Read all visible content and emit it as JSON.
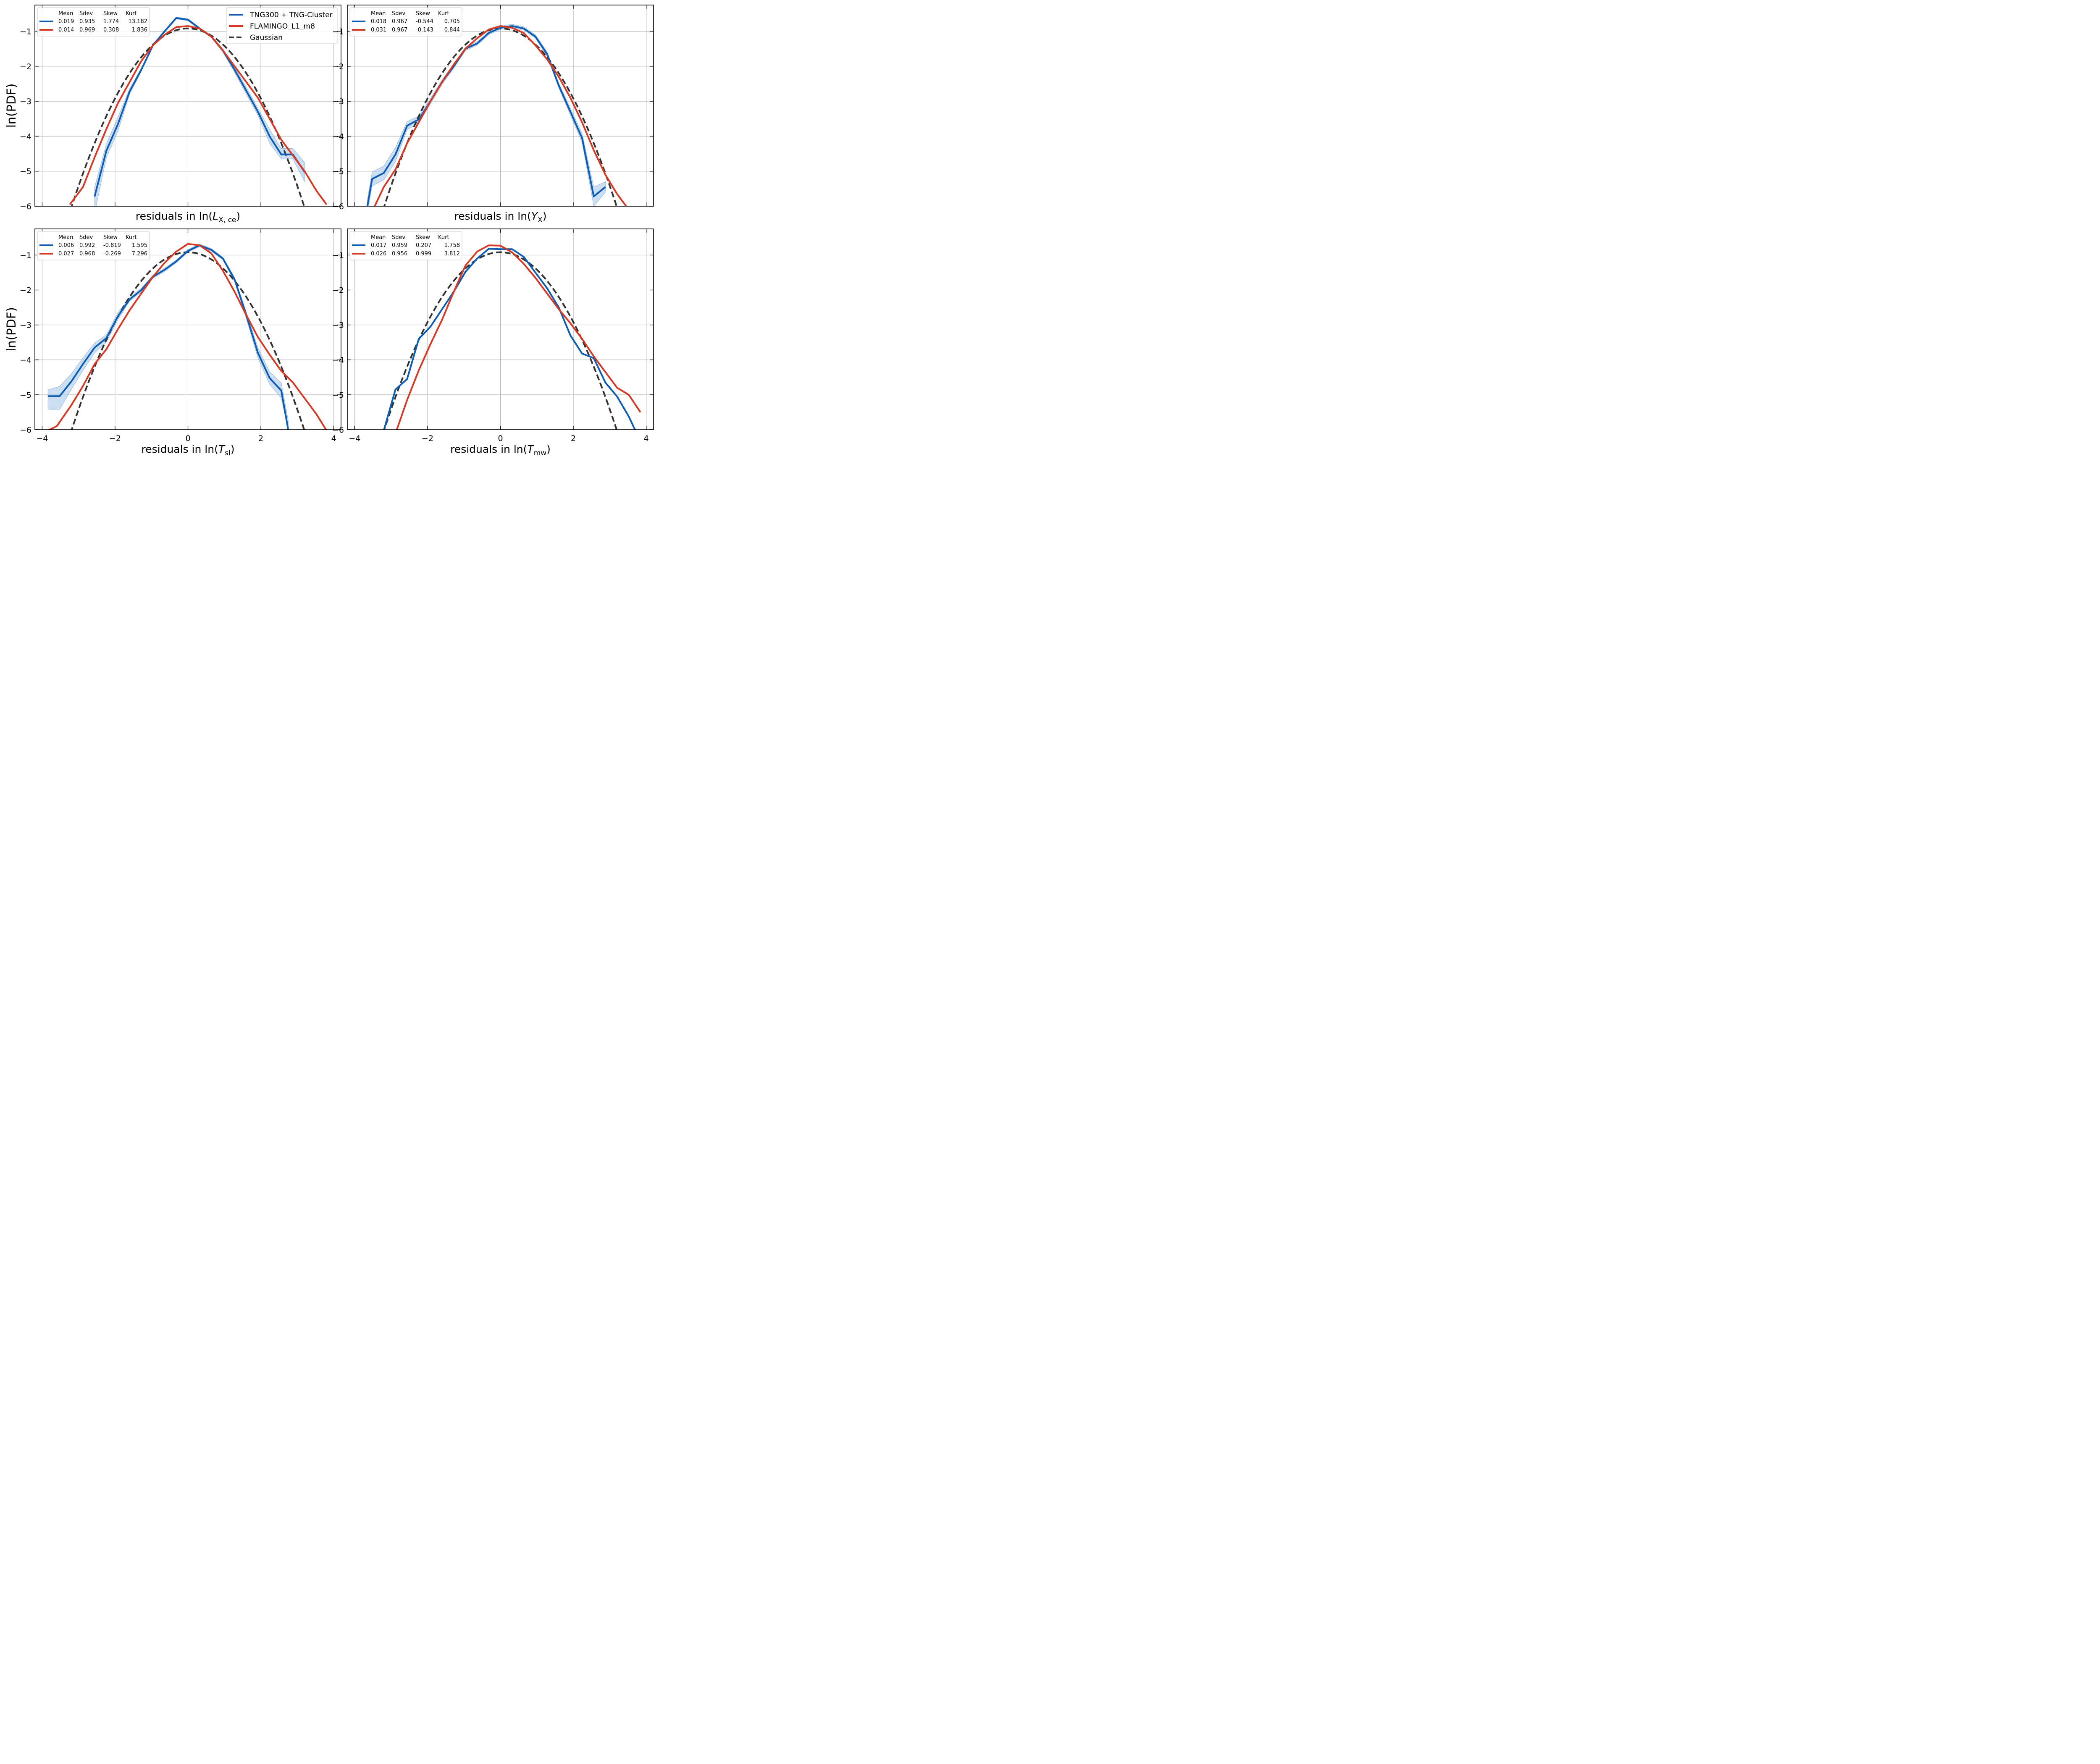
{
  "figure": {
    "ylabel": "ln(PDF)",
    "legend": {
      "placement": "top-right of first panel",
      "entries": [
        {
          "label": "TNG300 + TNG-Cluster",
          "color": "#0c5db3",
          "dash": "solid"
        },
        {
          "label": "FLAMINGO_L1_m8",
          "color": "#d63a24",
          "dash": "solid"
        },
        {
          "label": "Gaussian",
          "color": "#333333",
          "dash": "dashed"
        }
      ]
    },
    "colors": {
      "tng": "#0c5db3",
      "band": "#a9c8ea",
      "flamingo": "#d63a24",
      "gauss": "#333333"
    }
  },
  "chart_data": [
    {
      "type": "line",
      "panel": "top-left",
      "xlabel": {
        "pre": "residuals in ln(",
        "var": "L",
        "sub": "X, ce",
        "post": ")"
      },
      "ylabel": "ln(PDF)",
      "xlim": [
        -4.2,
        4.2
      ],
      "ylim": [
        -6.0,
        -0.25
      ],
      "xticks": [
        -4,
        -2,
        0,
        2,
        4
      ],
      "yticks": [
        -6,
        -5,
        -4,
        -3,
        -2,
        -1
      ],
      "show_xtick_labels": false,
      "grid": true,
      "stats": {
        "headers": [
          "Mean",
          "Sdev",
          "Skew",
          "Kurt"
        ],
        "rows": [
          {
            "series": "TNG300 + TNG-Cluster",
            "values": [
              "0.019",
              "0.935",
              "1.774",
              "13.182"
            ]
          },
          {
            "series": "FLAMINGO_L1_m8",
            "values": [
              "0.014",
              "0.969",
              "0.308",
              "1.836"
            ]
          }
        ]
      },
      "series": [
        {
          "name": "TNG300 + TNG-Cluster",
          "x": [
            -2.56,
            -2.24,
            -1.92,
            -1.6,
            -1.28,
            -0.96,
            -0.64,
            -0.32,
            0.0,
            0.32,
            0.64,
            0.96,
            1.28,
            1.6,
            1.92,
            2.24,
            2.56,
            2.88,
            3.2
          ],
          "y": [
            -5.72,
            -4.42,
            -3.65,
            -2.72,
            -2.1,
            -1.4,
            -1.0,
            -0.62,
            -0.67,
            -0.92,
            -1.15,
            -1.55,
            -2.1,
            -2.7,
            -3.3,
            -4.0,
            -4.52,
            -4.52,
            -5.02
          ],
          "band_lower": [
            -6.2,
            -4.62,
            -3.85,
            -2.8,
            -2.15,
            -1.43,
            -1.03,
            -0.65,
            -0.7,
            -0.95,
            -1.18,
            -1.6,
            -2.18,
            -2.8,
            -3.4,
            -4.2,
            -4.65,
            -4.65,
            -5.3
          ],
          "band_upper": [
            -5.45,
            -4.22,
            -3.45,
            -2.64,
            -2.05,
            -1.37,
            -0.97,
            -0.59,
            -0.64,
            -0.89,
            -1.12,
            -1.5,
            -2.02,
            -2.6,
            -3.2,
            -3.8,
            -4.35,
            -4.35,
            -4.75
          ]
        },
        {
          "name": "FLAMINGO_L1_m8",
          "x": [
            -3.24,
            -2.88,
            -2.56,
            -2.24,
            -1.92,
            -1.6,
            -1.28,
            -0.96,
            -0.64,
            -0.32,
            0.0,
            0.32,
            0.64,
            0.96,
            1.28,
            1.6,
            1.92,
            2.24,
            2.56,
            2.88,
            3.2,
            3.52,
            3.8
          ],
          "y": [
            -5.95,
            -5.45,
            -4.6,
            -3.8,
            -3.05,
            -2.45,
            -1.85,
            -1.4,
            -1.1,
            -0.88,
            -0.85,
            -0.92,
            -1.15,
            -1.55,
            -2.0,
            -2.45,
            -2.9,
            -3.5,
            -4.1,
            -4.55,
            -5.0,
            -5.55,
            -5.95
          ]
        }
      ]
    },
    {
      "type": "line",
      "panel": "top-right",
      "xlabel": {
        "pre": "residuals in ln(",
        "var": "Y",
        "sub": "X",
        "post": ")"
      },
      "ylabel": "",
      "xlim": [
        -4.2,
        4.2
      ],
      "ylim": [
        -6.0,
        -0.25
      ],
      "xticks": [
        -4,
        -2,
        0,
        2,
        4
      ],
      "yticks": [
        -6,
        -5,
        -4,
        -3,
        -2,
        -1
      ],
      "show_xtick_labels": false,
      "grid": true,
      "stats": {
        "headers": [
          "Mean",
          "Sdev",
          "Skew",
          "Kurt"
        ],
        "rows": [
          {
            "series": "TNG300 + TNG-Cluster",
            "values": [
              "0.018",
              "0.967",
              "-0.544",
              "0.705"
            ]
          },
          {
            "series": "FLAMINGO_L1_m8",
            "values": [
              "0.031",
              "0.967",
              "-0.143",
              "0.844"
            ]
          }
        ]
      },
      "series": [
        {
          "name": "TNG300 + TNG-Cluster",
          "x": [
            -3.65,
            -3.52,
            -3.2,
            -2.88,
            -2.56,
            -2.24,
            -1.92,
            -1.6,
            -1.28,
            -0.96,
            -0.64,
            -0.32,
            0.0,
            0.32,
            0.64,
            0.96,
            1.28,
            1.6,
            1.92,
            2.24,
            2.56,
            2.88
          ],
          "y": [
            -6.0,
            -5.22,
            -5.05,
            -4.52,
            -3.7,
            -3.52,
            -3.0,
            -2.45,
            -2.0,
            -1.5,
            -1.35,
            -1.05,
            -0.9,
            -0.85,
            -0.92,
            -1.15,
            -1.65,
            -2.55,
            -3.3,
            -4.05,
            -5.72,
            -5.45
          ],
          "band_lower": [
            -6.2,
            -5.42,
            -5.25,
            -4.72,
            -3.82,
            -3.62,
            -3.08,
            -2.52,
            -2.06,
            -1.55,
            -1.4,
            -1.1,
            -0.95,
            -0.9,
            -0.97,
            -1.2,
            -1.72,
            -2.62,
            -3.4,
            -4.18,
            -6.0,
            -5.6
          ],
          "band_upper": [
            -5.8,
            -5.02,
            -4.85,
            -4.32,
            -3.58,
            -3.42,
            -2.92,
            -2.38,
            -1.94,
            -1.45,
            -1.3,
            -1.0,
            -0.85,
            -0.8,
            -0.87,
            -1.1,
            -1.58,
            -2.48,
            -3.2,
            -3.92,
            -5.45,
            -5.3
          ]
        },
        {
          "name": "FLAMINGO_L1_m8",
          "x": [
            -3.45,
            -3.2,
            -2.88,
            -2.56,
            -2.24,
            -1.92,
            -1.6,
            -1.28,
            -0.96,
            -0.64,
            -0.32,
            0.0,
            0.32,
            0.64,
            0.96,
            1.28,
            1.6,
            1.92,
            2.24,
            2.56,
            2.88,
            3.2,
            3.45
          ],
          "y": [
            -6.0,
            -5.45,
            -4.95,
            -4.2,
            -3.6,
            -3.0,
            -2.45,
            -1.95,
            -1.5,
            -1.2,
            -0.95,
            -0.85,
            -0.9,
            -1.05,
            -1.4,
            -1.8,
            -2.3,
            -2.9,
            -3.6,
            -4.4,
            -5.1,
            -5.65,
            -6.0
          ]
        }
      ]
    },
    {
      "type": "line",
      "panel": "bottom-left",
      "xlabel": {
        "pre": "residuals in ln(",
        "var": "T",
        "sub": "sl",
        "post": ")"
      },
      "ylabel": "ln(PDF)",
      "xlim": [
        -4.2,
        4.2
      ],
      "ylim": [
        -6.0,
        -0.25
      ],
      "xticks": [
        -4,
        -2,
        0,
        2,
        4
      ],
      "yticks": [
        -6,
        -5,
        -4,
        -3,
        -2,
        -1
      ],
      "show_xtick_labels": true,
      "grid": true,
      "stats": {
        "headers": [
          "Mean",
          "Sdev",
          "Skew",
          "Kurt"
        ],
        "rows": [
          {
            "series": "TNG300 + TNG-Cluster",
            "values": [
              "0.006",
              "0.992",
              "-0.819",
              "1.595"
            ]
          },
          {
            "series": "FLAMINGO_L1_m8",
            "values": [
              "0.027",
              "0.968",
              "-0.269",
              "7.296"
            ]
          }
        ]
      },
      "series": [
        {
          "name": "TNG300 + TNG-Cluster",
          "x": [
            -3.84,
            -3.52,
            -3.2,
            -2.88,
            -2.56,
            -2.24,
            -1.92,
            -1.6,
            -1.28,
            -0.96,
            -0.64,
            -0.32,
            0.0,
            0.32,
            0.64,
            0.96,
            1.28,
            1.6,
            1.92,
            2.24,
            2.56,
            2.75
          ],
          "y": [
            -5.04,
            -5.04,
            -4.62,
            -4.12,
            -3.65,
            -3.38,
            -2.75,
            -2.27,
            -2.0,
            -1.62,
            -1.42,
            -1.18,
            -0.88,
            -0.72,
            -0.85,
            -1.1,
            -1.7,
            -2.72,
            -3.8,
            -4.52,
            -4.88,
            -6.0
          ],
          "band_lower": [
            -5.42,
            -5.42,
            -4.85,
            -4.3,
            -3.8,
            -3.5,
            -2.85,
            -2.33,
            -2.05,
            -1.67,
            -1.47,
            -1.22,
            -0.92,
            -0.76,
            -0.89,
            -1.14,
            -1.76,
            -2.82,
            -3.95,
            -4.7,
            -5.1,
            -6.0
          ],
          "band_upper": [
            -4.86,
            -4.76,
            -4.4,
            -3.94,
            -3.52,
            -3.28,
            -2.65,
            -2.21,
            -1.95,
            -1.57,
            -1.37,
            -1.14,
            -0.84,
            -0.68,
            -0.81,
            -1.06,
            -1.64,
            -2.62,
            -3.65,
            -4.34,
            -4.66,
            -5.72
          ]
        },
        {
          "name": "FLAMINGO_L1_m8",
          "x": [
            -3.84,
            -3.6,
            -3.2,
            -2.88,
            -2.56,
            -2.24,
            -1.92,
            -1.6,
            -1.28,
            -0.96,
            -0.64,
            -0.32,
            0.0,
            0.32,
            0.64,
            0.96,
            1.28,
            1.6,
            1.92,
            2.24,
            2.56,
            2.88,
            3.2,
            3.52,
            3.8
          ],
          "y": [
            -6.02,
            -5.9,
            -5.3,
            -4.75,
            -4.12,
            -3.7,
            -3.12,
            -2.58,
            -2.1,
            -1.62,
            -1.22,
            -0.9,
            -0.68,
            -0.72,
            -0.95,
            -1.45,
            -2.05,
            -2.72,
            -3.35,
            -3.85,
            -4.32,
            -4.65,
            -5.1,
            -5.55,
            -6.02
          ]
        }
      ]
    },
    {
      "type": "line",
      "panel": "bottom-right",
      "xlabel": {
        "pre": "residuals in ln(",
        "var": "T",
        "sub": "mw",
        "post": ")"
      },
      "ylabel": "",
      "xlim": [
        -4.2,
        4.2
      ],
      "ylim": [
        -6.0,
        -0.25
      ],
      "xticks": [
        -4,
        -2,
        0,
        2,
        4
      ],
      "yticks": [
        -6,
        -5,
        -4,
        -3,
        -2,
        -1
      ],
      "show_xtick_labels": true,
      "grid": true,
      "stats": {
        "headers": [
          "Mean",
          "Sdev",
          "Skew",
          "Kurt"
        ],
        "rows": [
          {
            "series": "TNG300 + TNG-Cluster",
            "values": [
              "0.017",
              "0.959",
              "0.207",
              "1.758"
            ]
          },
          {
            "series": "FLAMINGO_L1_m8",
            "values": [
              "0.026",
              "0.956",
              "0.999",
              "3.812"
            ]
          }
        ]
      },
      "series": [
        {
          "name": "TNG300 + TNG-Cluster",
          "x": [
            -3.2,
            -2.88,
            -2.56,
            -2.24,
            -1.92,
            -1.6,
            -1.28,
            -0.96,
            -0.64,
            -0.32,
            0.0,
            0.32,
            0.64,
            0.96,
            1.28,
            1.6,
            1.92,
            2.24,
            2.56,
            2.88,
            3.2,
            3.52,
            3.7
          ],
          "y": [
            -6.02,
            -4.85,
            -4.55,
            -3.4,
            -3.05,
            -2.55,
            -2.05,
            -1.48,
            -1.1,
            -0.82,
            -0.83,
            -0.83,
            -1.05,
            -1.5,
            -1.95,
            -2.5,
            -3.3,
            -3.82,
            -3.95,
            -4.65,
            -5.05,
            -5.62,
            -6.02
          ]
        },
        {
          "name": "FLAMINGO_L1_m8",
          "x": [
            -2.85,
            -2.56,
            -2.24,
            -1.92,
            -1.6,
            -1.28,
            -0.96,
            -0.64,
            -0.32,
            0.0,
            0.32,
            0.64,
            0.96,
            1.28,
            1.6,
            1.92,
            2.24,
            2.56,
            2.88,
            3.2,
            3.52,
            3.84
          ],
          "y": [
            -6.02,
            -5.15,
            -4.3,
            -3.55,
            -2.85,
            -2.05,
            -1.3,
            -0.9,
            -0.72,
            -0.73,
            -0.92,
            -1.25,
            -1.65,
            -2.1,
            -2.55,
            -2.95,
            -3.4,
            -3.9,
            -4.35,
            -4.8,
            -5.0,
            -5.5
          ]
        }
      ]
    }
  ]
}
